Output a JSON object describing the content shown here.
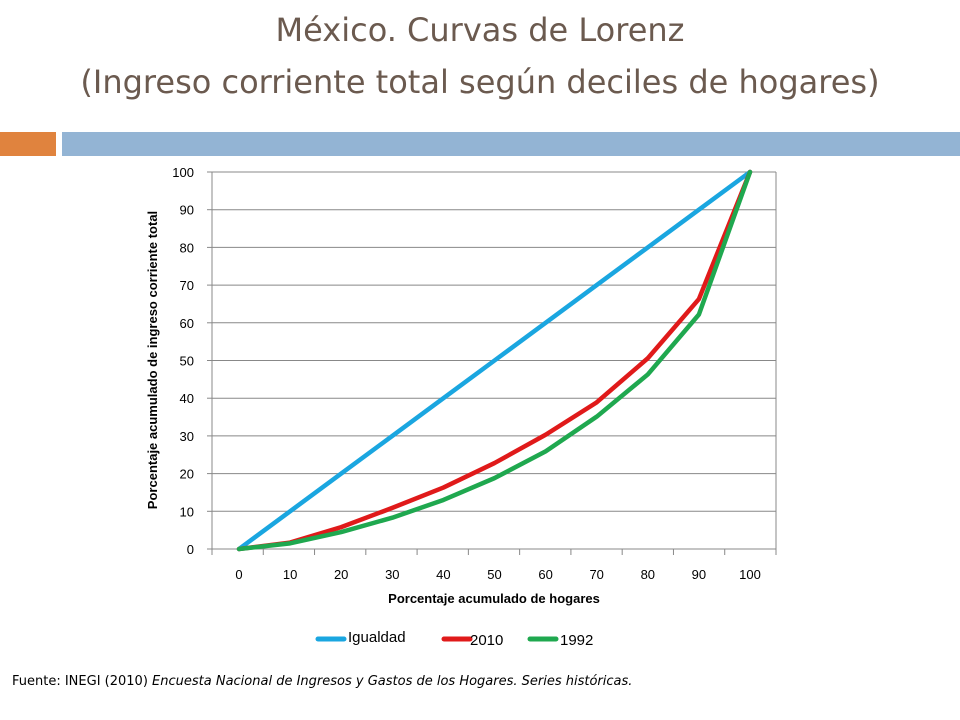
{
  "slide": {
    "title_line1": "México. Curvas de Lorenz",
    "title_line2": "(Ingreso corriente total según deciles de hogares)",
    "source_prefix": "Fuente: INEGI (2010) ",
    "source_italic": "Encuesta Nacional de Ingresos y Gastos de los Hogares. Series históricas."
  },
  "chart_data": {
    "type": "line",
    "xlabel": "Porcentaje acumulado de hogares",
    "ylabel": "Porcentaje acumulado de ingreso corriente total",
    "xlim": [
      0,
      100
    ],
    "ylim": [
      0,
      100
    ],
    "x_ticks": [
      0,
      10,
      20,
      30,
      40,
      50,
      60,
      70,
      80,
      90,
      100
    ],
    "y_ticks": [
      0,
      10,
      20,
      30,
      40,
      50,
      60,
      70,
      80,
      90,
      100
    ],
    "grid": "horizontal",
    "legend_position": "bottom",
    "x": [
      0,
      10,
      20,
      30,
      40,
      50,
      60,
      70,
      80,
      90,
      100
    ],
    "series": [
      {
        "name": "Igualdad",
        "color": "#1aa6e0",
        "values": [
          0,
          10,
          20,
          30,
          40,
          50,
          60,
          70,
          80,
          90,
          100
        ]
      },
      {
        "name": "2010",
        "color": "#e01a1a",
        "values": [
          0,
          1.7,
          5.8,
          10.9,
          16.3,
          22.8,
          30.3,
          38.9,
          50.6,
          66.3,
          100
        ]
      },
      {
        "name": "1992",
        "color": "#1fa84f",
        "values": [
          0,
          1.5,
          4.5,
          8.3,
          13.0,
          18.8,
          25.9,
          35.1,
          46.3,
          62.2,
          100
        ]
      }
    ]
  }
}
